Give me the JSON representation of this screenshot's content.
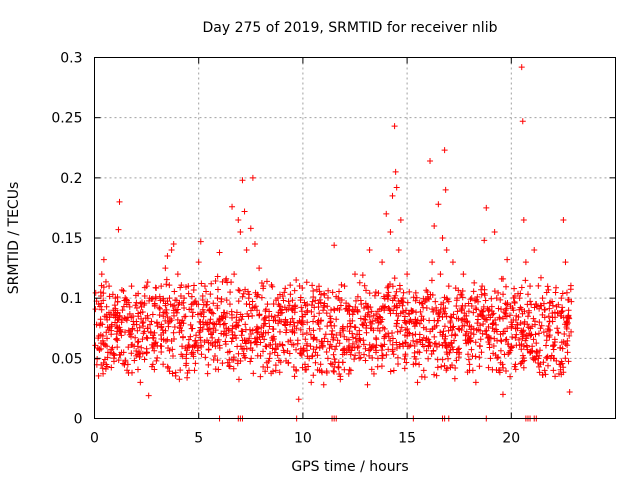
{
  "chart_data": {
    "type": "scatter",
    "title": "Day 275 of 2019, SRMTID for receiver nlib",
    "xlabel": "GPS time / hours",
    "ylabel": "SRMTID / TECUs",
    "xlim": [
      0,
      25
    ],
    "ylim": [
      0,
      0.3
    ],
    "x_ticks": [
      0,
      5,
      10,
      15,
      20
    ],
    "x_tick_labels": [
      "0",
      "5",
      "10",
      "15",
      "20"
    ],
    "y_ticks": [
      0,
      0.05,
      0.1,
      0.15,
      0.2,
      0.25,
      0.3
    ],
    "y_tick_labels": [
      "0",
      "0.05",
      "0.1",
      "0.15",
      "0.2",
      "0.25",
      "0.3"
    ],
    "grid": true,
    "marker": "+",
    "color": "#ff0000",
    "series": [
      {
        "name": "SRMTID",
        "x_range": [
          0,
          22.8
        ],
        "points": [
          [
            0.1,
            0.078
          ],
          [
            0.2,
            0.095
          ],
          [
            0.3,
            0.105
          ],
          [
            0.35,
            0.12
          ],
          [
            0.45,
            0.132
          ],
          [
            0.5,
            0.085
          ],
          [
            0.6,
            0.06
          ],
          [
            0.7,
            0.11
          ],
          [
            0.8,
            0.07
          ],
          [
            0.9,
            0.09
          ],
          [
            1.0,
            0.1
          ],
          [
            1.1,
            0.065
          ],
          [
            1.15,
            0.157
          ],
          [
            1.2,
            0.18
          ],
          [
            1.3,
            0.08
          ],
          [
            1.4,
            0.055
          ],
          [
            1.5,
            0.098
          ],
          [
            1.6,
            0.045
          ],
          [
            1.7,
            0.072
          ],
          [
            1.8,
            0.038
          ],
          [
            1.9,
            0.06
          ],
          [
            2.0,
            0.052
          ],
          [
            2.1,
            0.085
          ],
          [
            2.2,
            0.03
          ],
          [
            2.3,
            0.066
          ],
          [
            2.4,
            0.049
          ],
          [
            2.5,
            0.058
          ],
          [
            2.6,
            0.019
          ],
          [
            2.7,
            0.072
          ],
          [
            2.8,
            0.045
          ],
          [
            2.9,
            0.062
          ],
          [
            3.0,
            0.08
          ],
          [
            3.1,
            0.092
          ],
          [
            3.2,
            0.11
          ],
          [
            3.3,
            0.085
          ],
          [
            3.4,
            0.125
          ],
          [
            3.5,
            0.135
          ],
          [
            3.6,
            0.1
          ],
          [
            3.7,
            0.14
          ],
          [
            3.8,
            0.145
          ],
          [
            3.9,
            0.09
          ],
          [
            4.0,
            0.12
          ],
          [
            4.1,
            0.075
          ],
          [
            4.2,
            0.06
          ],
          [
            4.3,
            0.1
          ],
          [
            4.4,
            0.05
          ],
          [
            4.5,
            0.11
          ],
          [
            4.6,
            0.068
          ],
          [
            4.7,
            0.085
          ],
          [
            4.8,
            0.04
          ],
          [
            4.9,
            0.095
          ],
          [
            5.0,
            0.13
          ],
          [
            5.1,
            0.147
          ],
          [
            5.2,
            0.08
          ],
          [
            5.3,
            0.11
          ],
          [
            5.4,
            0.065
          ],
          [
            5.5,
            0.09
          ],
          [
            5.6,
            0.112
          ],
          [
            5.7,
            0.075
          ],
          [
            5.8,
            0.06
          ],
          [
            5.9,
            0.1
          ],
          [
            6.0,
            0.138
          ],
          [
            6.1,
            0.085
          ],
          [
            6.2,
            0.07
          ],
          [
            6.3,
            0.115
          ],
          [
            6.4,
            0.055
          ],
          [
            6.5,
            0.095
          ],
          [
            6.6,
            0.176
          ],
          [
            6.7,
            0.12
          ],
          [
            6.8,
            0.08
          ],
          [
            6.9,
            0.165
          ],
          [
            7.0,
            0.155
          ],
          [
            7.1,
            0.198
          ],
          [
            7.2,
            0.172
          ],
          [
            7.3,
            0.14
          ],
          [
            7.4,
            0.1
          ],
          [
            7.5,
            0.158
          ],
          [
            7.6,
            0.2
          ],
          [
            7.7,
            0.145
          ],
          [
            7.8,
            0.09
          ],
          [
            7.9,
            0.125
          ],
          [
            8.0,
            0.07
          ],
          [
            8.1,
            0.11
          ],
          [
            8.2,
            0.06
          ],
          [
            8.3,
            0.095
          ],
          [
            8.4,
            0.05
          ],
          [
            8.5,
            0.085
          ],
          [
            8.6,
            0.068
          ],
          [
            8.7,
            0.04
          ],
          [
            8.8,
            0.1
          ],
          [
            8.9,
            0.072
          ],
          [
            9.0,
            0.088
          ],
          [
            9.1,
            0.055
          ],
          [
            9.2,
            0.08
          ],
          [
            9.3,
            0.046
          ],
          [
            9.4,
            0.065
          ],
          [
            9.5,
            0.09
          ],
          [
            9.6,
            0.035
          ],
          [
            9.7,
            0.075
          ],
          [
            9.8,
            0.016
          ],
          [
            9.9,
            0.058
          ],
          [
            10.0,
            0.07
          ],
          [
            10.1,
            0.045
          ],
          [
            10.2,
            0.062
          ],
          [
            10.3,
            0.05
          ],
          [
            10.4,
            0.03
          ],
          [
            10.5,
            0.066
          ],
          [
            10.6,
            0.055
          ],
          [
            10.7,
            0.08
          ],
          [
            10.8,
            0.04
          ],
          [
            10.9,
            0.062
          ],
          [
            11.0,
            0.028
          ],
          [
            11.1,
            0.07
          ],
          [
            11.2,
            0.05
          ],
          [
            11.3,
            0.085
          ],
          [
            11.4,
            0.045
          ],
          [
            11.5,
            0.144
          ],
          [
            11.6,
            0.06
          ],
          [
            11.7,
            0.1
          ],
          [
            11.8,
            0.035
          ],
          [
            11.9,
            0.075
          ],
          [
            12.0,
            0.11
          ],
          [
            12.1,
            0.055
          ],
          [
            12.2,
            0.09
          ],
          [
            12.3,
            0.04
          ],
          [
            12.4,
            0.062
          ],
          [
            12.5,
            0.12
          ],
          [
            12.6,
            0.07
          ],
          [
            12.7,
            0.05
          ],
          [
            12.8,
            0.095
          ],
          [
            12.9,
            0.065
          ],
          [
            13.0,
            0.085
          ],
          [
            13.1,
            0.028
          ],
          [
            13.2,
            0.14
          ],
          [
            13.3,
            0.075
          ],
          [
            13.4,
            0.06
          ],
          [
            13.5,
            0.105
          ],
          [
            13.6,
            0.05
          ],
          [
            13.7,
            0.08
          ],
          [
            13.8,
            0.13
          ],
          [
            13.9,
            0.09
          ],
          [
            14.0,
            0.17
          ],
          [
            14.1,
            0.11
          ],
          [
            14.2,
            0.155
          ],
          [
            14.3,
            0.185
          ],
          [
            14.4,
            0.243
          ],
          [
            14.45,
            0.205
          ],
          [
            14.5,
            0.192
          ],
          [
            14.6,
            0.14
          ],
          [
            14.7,
            0.165
          ],
          [
            14.8,
            0.1
          ],
          [
            14.9,
            0.08
          ],
          [
            15.0,
            0.12
          ],
          [
            15.1,
            0.06
          ],
          [
            15.2,
            0.09
          ],
          [
            15.3,
            0.045
          ],
          [
            15.4,
            0.07
          ],
          [
            15.5,
            0.03
          ],
          [
            15.6,
            0.055
          ],
          [
            15.7,
            0.085
          ],
          [
            15.8,
            0.04
          ],
          [
            15.9,
            0.065
          ],
          [
            16.0,
            0.1
          ],
          [
            16.1,
            0.214
          ],
          [
            16.2,
            0.13
          ],
          [
            16.3,
            0.16
          ],
          [
            16.4,
            0.09
          ],
          [
            16.5,
            0.178
          ],
          [
            16.6,
            0.12
          ],
          [
            16.7,
            0.15
          ],
          [
            16.8,
            0.223
          ],
          [
            16.85,
            0.19
          ],
          [
            16.9,
            0.14
          ],
          [
            17.0,
            0.11
          ],
          [
            17.1,
            0.085
          ],
          [
            17.2,
            0.13
          ],
          [
            17.3,
            0.07
          ],
          [
            17.4,
            0.1
          ],
          [
            17.5,
            0.055
          ],
          [
            17.6,
            0.09
          ],
          [
            17.7,
            0.12
          ],
          [
            17.8,
            0.065
          ],
          [
            17.9,
            0.08
          ],
          [
            18.0,
            0.045
          ],
          [
            18.1,
            0.1
          ],
          [
            18.2,
            0.07
          ],
          [
            18.3,
            0.03
          ],
          [
            18.4,
            0.085
          ],
          [
            18.5,
            0.06
          ],
          [
            18.6,
            0.11
          ],
          [
            18.7,
            0.148
          ],
          [
            18.8,
            0.175
          ],
          [
            18.9,
            0.09
          ],
          [
            19.0,
            0.05
          ],
          [
            19.1,
            0.075
          ],
          [
            19.2,
            0.155
          ],
          [
            19.3,
            0.1
          ],
          [
            19.4,
            0.04
          ],
          [
            19.5,
            0.065
          ],
          [
            19.6,
            0.02
          ],
          [
            19.7,
            0.085
          ],
          [
            19.8,
            0.132
          ],
          [
            19.9,
            0.055
          ],
          [
            20.0,
            0.06
          ],
          [
            20.1,
            0.09
          ],
          [
            20.2,
            0.045
          ],
          [
            20.3,
            0.075
          ],
          [
            20.4,
            0.1
          ],
          [
            20.5,
            0.292
          ],
          [
            20.55,
            0.247
          ],
          [
            20.6,
            0.165
          ],
          [
            20.7,
            0.13
          ],
          [
            20.8,
            0.085
          ],
          [
            20.9,
            0.11
          ],
          [
            21.0,
            0.06
          ],
          [
            21.1,
            0.14
          ],
          [
            21.2,
            0.095
          ],
          [
            21.3,
            0.05
          ],
          [
            21.4,
            0.075
          ],
          [
            21.5,
            0.1
          ],
          [
            21.6,
            0.04
          ],
          [
            21.7,
            0.065
          ],
          [
            21.8,
            0.085
          ],
          [
            21.9,
            0.05
          ],
          [
            22.0,
            0.06
          ],
          [
            22.1,
            0.035
          ],
          [
            22.2,
            0.075
          ],
          [
            22.3,
            0.045
          ],
          [
            22.4,
            0.1
          ],
          [
            22.5,
            0.165
          ],
          [
            22.6,
            0.13
          ],
          [
            22.7,
            0.055
          ],
          [
            22.75,
            0.09
          ],
          [
            22.8,
            0.022
          ]
        ],
        "zero_points_x": [
          6.0,
          6.9,
          7.0,
          7.1,
          9.7,
          11.4,
          11.5,
          11.6,
          15.3,
          16.7,
          16.8,
          17.0,
          18.8,
          20.7,
          20.8,
          20.9,
          21.1,
          21.2
        ]
      }
    ]
  }
}
